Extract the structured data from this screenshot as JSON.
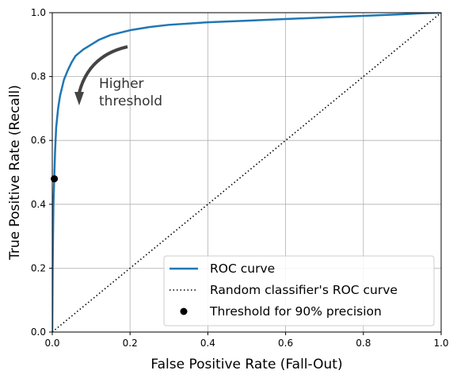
{
  "chart_data": {
    "type": "line",
    "xlabel": "False Positive Rate (Fall-Out)",
    "ylabel": "True Positive Rate (Recall)",
    "xlim": [
      0,
      1
    ],
    "ylim": [
      0,
      1
    ],
    "xticks": [
      "0.0",
      "0.2",
      "0.4",
      "0.6",
      "0.8",
      "1.0"
    ],
    "yticks": [
      "0.0",
      "0.2",
      "0.4",
      "0.6",
      "0.8",
      "1.0"
    ],
    "grid": true,
    "legend_position": "lower-right",
    "series": [
      {
        "name": "ROC curve",
        "style": "solid",
        "color": "#1f77b4",
        "x": [
          0,
          0.001,
          0.002,
          0.003,
          0.005,
          0.007,
          0.01,
          0.015,
          0.02,
          0.03,
          0.04,
          0.05,
          0.06,
          0.08,
          0.1,
          0.12,
          0.15,
          0.2,
          0.25,
          0.3,
          0.4,
          0.5,
          0.6,
          0.7,
          0.8,
          0.9,
          0.95,
          1.0
        ],
        "y": [
          0,
          0.2,
          0.3,
          0.4,
          0.48,
          0.56,
          0.64,
          0.7,
          0.74,
          0.79,
          0.82,
          0.845,
          0.865,
          0.885,
          0.9,
          0.915,
          0.93,
          0.945,
          0.955,
          0.962,
          0.97,
          0.975,
          0.98,
          0.985,
          0.99,
          0.995,
          0.998,
          1.0
        ]
      },
      {
        "name": "Random classifier's ROC curve",
        "style": "dotted",
        "color": "#000000",
        "x": [
          0,
          1
        ],
        "y": [
          0,
          1
        ]
      }
    ],
    "points": [
      {
        "name": "Threshold for 90% precision",
        "x": 0.0053,
        "y": 0.4799,
        "color": "#000000"
      }
    ],
    "annotation": {
      "text_lines": [
        "Higher",
        "threshold"
      ],
      "color": "#333333"
    }
  }
}
